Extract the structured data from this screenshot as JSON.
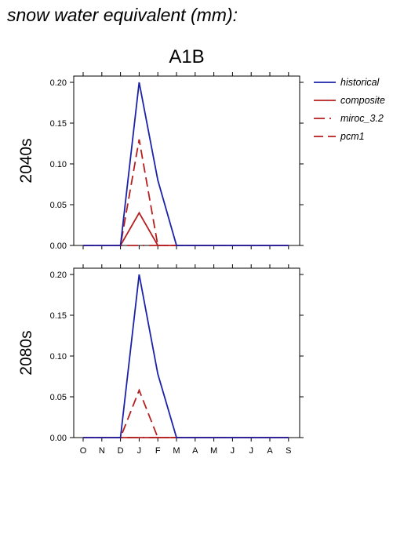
{
  "page": {
    "title": "snow water equivalent (mm):"
  },
  "colors": {
    "historical": "#1c22a8",
    "projection": "#b51f1f",
    "axis": "#000000"
  },
  "chart_data": {
    "type": "line",
    "scenario": "A1B",
    "categories": [
      "O",
      "N",
      "D",
      "J",
      "F",
      "M",
      "A",
      "M",
      "J",
      "J",
      "A",
      "S"
    ],
    "ylim": [
      0,
      0.2
    ],
    "yticks": [
      "0.00",
      "0.05",
      "0.10",
      "0.15",
      "0.20"
    ],
    "legend_position": "right",
    "legend": [
      {
        "name": "historical",
        "color": "#1c22a8",
        "dash": "solid"
      },
      {
        "name": "composite",
        "color": "#b51f1f",
        "dash": "solid"
      },
      {
        "name": "miroc_3.2",
        "color": "#b51f1f",
        "dash": "dashdot"
      },
      {
        "name": "pcm1",
        "color": "#b51f1f",
        "dash": "dashed"
      }
    ],
    "panels": [
      {
        "label": "2040s",
        "series": [
          {
            "name": "historical",
            "values": [
              0,
              0,
              0,
              0.2,
              0.08,
              0,
              0,
              0,
              0,
              0,
              0,
              0
            ]
          },
          {
            "name": "composite",
            "values": [
              0,
              0,
              0,
              0.04,
              0,
              0,
              0,
              0,
              0,
              0,
              0,
              0
            ]
          },
          {
            "name": "miroc_3.2",
            "values": [
              0,
              0,
              0,
              0,
              0,
              0,
              0,
              0,
              0,
              0,
              0,
              0
            ]
          },
          {
            "name": "pcm1",
            "values": [
              0,
              0,
              0,
              0.13,
              0,
              0,
              0,
              0,
              0,
              0,
              0,
              0
            ]
          }
        ]
      },
      {
        "label": "2080s",
        "series": [
          {
            "name": "historical",
            "values": [
              0,
              0,
              0,
              0.2,
              0.078,
              0,
              0,
              0,
              0,
              0,
              0,
              0
            ]
          },
          {
            "name": "composite",
            "values": [
              0,
              0,
              0,
              0,
              0,
              0,
              0,
              0,
              0,
              0,
              0,
              0
            ]
          },
          {
            "name": "miroc_3.2",
            "values": [
              0,
              0,
              0,
              0,
              0,
              0,
              0,
              0,
              0,
              0,
              0,
              0
            ]
          },
          {
            "name": "pcm1",
            "values": [
              0,
              0,
              0,
              0.058,
              0,
              0,
              0,
              0,
              0,
              0,
              0,
              0
            ]
          }
        ]
      }
    ]
  }
}
